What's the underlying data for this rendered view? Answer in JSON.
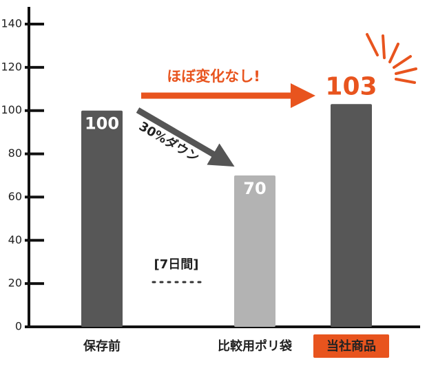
{
  "chart_data": {
    "type": "bar",
    "categories": [
      "保存前",
      "比較用ポリ袋",
      "当社商品"
    ],
    "values": [
      100,
      70,
      103
    ],
    "colors": [
      "#575757",
      "#b3b3b3",
      "#575757"
    ],
    "label_colors": [
      "#ffffff",
      "#ffffff",
      "#e8541e"
    ],
    "highlight_color": "#e8541e",
    "ylim": [
      0,
      140
    ],
    "yticks": [
      0,
      20,
      40,
      60,
      80,
      100,
      120,
      140
    ],
    "annotations": [
      "ほぼ変化なし!",
      "30%ダウン",
      "[7日間]"
    ]
  }
}
